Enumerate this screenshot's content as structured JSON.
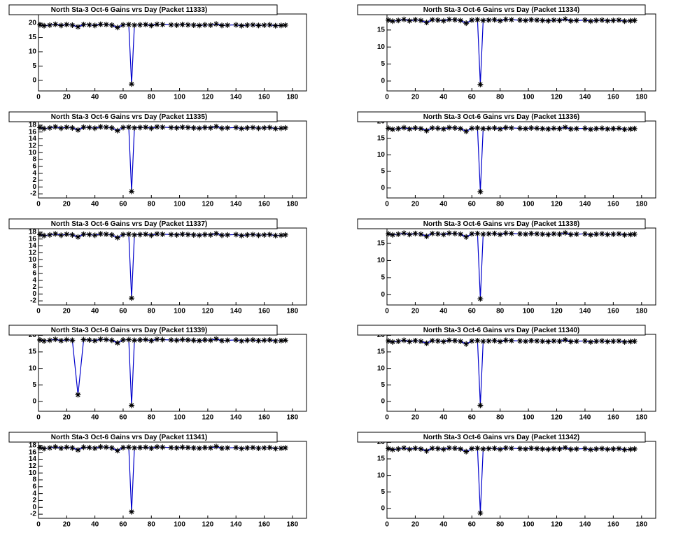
{
  "chart_data": [
    {
      "type": "line",
      "title": "North Sta-3 Oct-6 Gains vrs Day (Packet 11333)",
      "color": "#0000cc",
      "marker_color": "#000000",
      "x": [
        1,
        4,
        8,
        12,
        16,
        20,
        24,
        28,
        32,
        36,
        40,
        44,
        48,
        52,
        56,
        60,
        64,
        66,
        68,
        72,
        76,
        80,
        84,
        88,
        94,
        98,
        102,
        106,
        110,
        114,
        118,
        122,
        126,
        130,
        134,
        140,
        144,
        148,
        152,
        156,
        160,
        164,
        168,
        172,
        175
      ],
      "values": [
        19.4,
        19.1,
        19.3,
        19.6,
        19.2,
        19.5,
        19.3,
        18.7,
        19.5,
        19.4,
        19.2,
        19.6,
        19.5,
        19.3,
        18.5,
        19.4,
        19.5,
        -1.3,
        19.3,
        19.4,
        19.5,
        19.2,
        19.6,
        19.5,
        19.4,
        19.3,
        19.5,
        19.4,
        19.3,
        19.2,
        19.4,
        19.3,
        19.7,
        19.2,
        19.3,
        19.4,
        19.1,
        19.3,
        19.4,
        19.2,
        19.3,
        19.4,
        19.1,
        19.2,
        19.3
      ],
      "xlim": [
        0,
        190
      ],
      "ylim": [
        -3.7,
        23.2
      ],
      "xticks": [
        0,
        20,
        40,
        60,
        80,
        100,
        120,
        140,
        160,
        180
      ],
      "yticks": [
        0,
        5,
        10,
        15,
        20
      ]
    },
    {
      "type": "line",
      "title": "North Sta-3 Oct-6 Gains vrs Day (Packet 11334)",
      "color": "#0000cc",
      "marker_color": "#000000",
      "x": [
        1,
        4,
        8,
        12,
        16,
        20,
        24,
        28,
        32,
        36,
        40,
        44,
        48,
        52,
        56,
        60,
        64,
        66,
        68,
        72,
        76,
        80,
        84,
        88,
        94,
        98,
        102,
        106,
        110,
        114,
        118,
        122,
        126,
        130,
        134,
        140,
        144,
        148,
        152,
        156,
        160,
        164,
        168,
        172,
        175
      ],
      "values": [
        17.9,
        17.6,
        17.8,
        18.1,
        17.7,
        18.0,
        17.8,
        17.2,
        18.0,
        17.9,
        17.7,
        18.1,
        18.0,
        17.8,
        17.0,
        17.9,
        18.0,
        -1.0,
        17.8,
        17.9,
        18.0,
        17.7,
        18.1,
        18.0,
        17.9,
        17.8,
        18.0,
        17.9,
        17.8,
        17.7,
        17.9,
        17.8,
        18.2,
        17.7,
        17.8,
        17.9,
        17.6,
        17.8,
        17.9,
        17.7,
        17.8,
        17.9,
        17.6,
        17.7,
        17.8
      ],
      "xlim": [
        0,
        190
      ],
      "ylim": [
        -2.9,
        19.7
      ],
      "xticks": [
        0,
        20,
        40,
        60,
        80,
        100,
        120,
        140,
        160,
        180
      ],
      "yticks": [
        0,
        5,
        10,
        15
      ]
    },
    {
      "type": "line",
      "title": "North Sta-3 Oct-6 Gains vrs Day (Packet 11335)",
      "color": "#0000cc",
      "marker_color": "#000000",
      "x": [
        1,
        4,
        8,
        12,
        16,
        20,
        24,
        28,
        32,
        36,
        40,
        44,
        48,
        52,
        56,
        60,
        64,
        66,
        68,
        72,
        76,
        80,
        84,
        88,
        94,
        98,
        102,
        106,
        110,
        114,
        118,
        122,
        126,
        130,
        134,
        140,
        144,
        148,
        152,
        156,
        160,
        164,
        168,
        172,
        175
      ],
      "values": [
        17.3,
        17.0,
        17.2,
        17.5,
        17.1,
        17.4,
        17.2,
        16.6,
        17.4,
        17.3,
        17.1,
        17.5,
        17.4,
        17.2,
        16.4,
        17.3,
        17.4,
        -1.3,
        17.2,
        17.3,
        17.4,
        17.1,
        17.5,
        17.4,
        17.3,
        17.2,
        17.4,
        17.3,
        17.2,
        17.1,
        17.3,
        17.2,
        17.6,
        17.1,
        17.2,
        17.3,
        17.0,
        17.2,
        17.3,
        17.1,
        17.2,
        17.3,
        17.0,
        17.1,
        17.2
      ],
      "xlim": [
        0,
        190
      ],
      "ylim": [
        -3.2,
        19.2
      ],
      "xticks": [
        0,
        20,
        40,
        60,
        80,
        100,
        120,
        140,
        160,
        180
      ],
      "yticks": [
        -2,
        0,
        2,
        4,
        6,
        8,
        10,
        12,
        14,
        16,
        18
      ]
    },
    {
      "type": "line",
      "title": "North Sta-3 Oct-6 Gains vrs Day (Packet 11336)",
      "color": "#0000cc",
      "marker_color": "#000000",
      "x": [
        1,
        4,
        8,
        12,
        16,
        20,
        24,
        28,
        32,
        36,
        40,
        44,
        48,
        52,
        56,
        60,
        64,
        66,
        68,
        72,
        76,
        80,
        84,
        88,
        94,
        98,
        102,
        106,
        110,
        114,
        118,
        122,
        126,
        130,
        134,
        140,
        144,
        148,
        152,
        156,
        160,
        164,
        168,
        172,
        175
      ],
      "values": [
        18.0,
        17.7,
        17.9,
        18.2,
        17.8,
        18.1,
        17.9,
        17.3,
        18.1,
        18.0,
        17.8,
        18.2,
        18.1,
        17.9,
        17.1,
        18.0,
        18.1,
        -1.1,
        17.9,
        18.0,
        18.1,
        17.8,
        18.2,
        18.1,
        18.0,
        17.9,
        18.1,
        18.0,
        17.9,
        17.8,
        18.0,
        17.9,
        18.3,
        17.8,
        17.9,
        18.0,
        17.7,
        17.9,
        18.0,
        17.8,
        17.9,
        18.0,
        17.7,
        17.8,
        17.9
      ],
      "xlim": [
        0,
        190
      ],
      "ylim": [
        -3.0,
        20.2
      ],
      "xticks": [
        0,
        20,
        40,
        60,
        80,
        100,
        120,
        140,
        160,
        180
      ],
      "yticks": [
        0,
        5,
        10,
        15,
        20
      ]
    },
    {
      "type": "line",
      "title": "North Sta-3 Oct-6 Gains vrs Day (Packet 11337)",
      "color": "#0000cc",
      "marker_color": "#000000",
      "x": [
        1,
        4,
        8,
        12,
        16,
        20,
        24,
        28,
        32,
        36,
        40,
        44,
        48,
        52,
        56,
        60,
        64,
        66,
        68,
        72,
        76,
        80,
        84,
        88,
        94,
        98,
        102,
        106,
        110,
        114,
        118,
        122,
        126,
        130,
        134,
        140,
        144,
        148,
        152,
        156,
        160,
        164,
        168,
        172,
        175
      ],
      "values": [
        17.3,
        17.0,
        17.2,
        17.5,
        17.1,
        17.4,
        17.2,
        16.6,
        17.4,
        17.3,
        17.1,
        17.5,
        17.4,
        17.2,
        16.4,
        17.3,
        17.4,
        -1.2,
        17.2,
        17.3,
        17.4,
        17.1,
        17.5,
        17.4,
        17.3,
        17.2,
        17.4,
        17.3,
        17.2,
        17.1,
        17.3,
        17.2,
        17.6,
        17.1,
        17.2,
        17.3,
        17.0,
        17.2,
        17.3,
        17.1,
        17.2,
        17.3,
        17.0,
        17.1,
        17.2
      ],
      "xlim": [
        0,
        190
      ],
      "ylim": [
        -3.2,
        19.2
      ],
      "xticks": [
        0,
        20,
        40,
        60,
        80,
        100,
        120,
        140,
        160,
        180
      ],
      "yticks": [
        -2,
        0,
        2,
        4,
        6,
        8,
        10,
        12,
        14,
        16,
        18
      ]
    },
    {
      "type": "line",
      "title": "North Sta-3 Oct-6 Gains vrs Day (Packet 11338)",
      "color": "#0000cc",
      "marker_color": "#000000",
      "x": [
        1,
        4,
        8,
        12,
        16,
        20,
        24,
        28,
        32,
        36,
        40,
        44,
        48,
        52,
        56,
        60,
        64,
        66,
        68,
        72,
        76,
        80,
        84,
        88,
        94,
        98,
        102,
        106,
        110,
        114,
        118,
        122,
        126,
        130,
        134,
        140,
        144,
        148,
        152,
        156,
        160,
        164,
        168,
        172,
        175
      ],
      "values": [
        17.8,
        17.5,
        17.7,
        18.0,
        17.6,
        17.9,
        17.7,
        17.1,
        17.9,
        17.8,
        17.6,
        18.0,
        17.9,
        17.7,
        16.9,
        17.8,
        17.9,
        -1.2,
        17.7,
        17.8,
        17.9,
        17.6,
        18.0,
        17.9,
        17.8,
        17.7,
        17.9,
        17.8,
        17.7,
        17.6,
        17.8,
        17.7,
        18.1,
        17.6,
        17.7,
        17.8,
        17.5,
        17.7,
        17.8,
        17.6,
        17.7,
        17.8,
        17.5,
        17.6,
        17.7
      ],
      "xlim": [
        0,
        190
      ],
      "ylim": [
        -3.0,
        19.5
      ],
      "xticks": [
        0,
        20,
        40,
        60,
        80,
        100,
        120,
        140,
        160,
        180
      ],
      "yticks": [
        0,
        5,
        10,
        15
      ]
    },
    {
      "type": "line",
      "title": "North Sta-3 Oct-6 Gains vrs Day (Packet 11339)",
      "color": "#0000cc",
      "marker_color": "#000000",
      "x": [
        1,
        4,
        8,
        12,
        16,
        20,
        24,
        28,
        32,
        36,
        40,
        44,
        48,
        52,
        56,
        60,
        64,
        66,
        68,
        72,
        76,
        80,
        84,
        88,
        94,
        98,
        102,
        106,
        110,
        114,
        118,
        122,
        126,
        130,
        134,
        140,
        144,
        148,
        152,
        156,
        160,
        164,
        168,
        172,
        175
      ],
      "values": [
        18.6,
        18.3,
        18.5,
        18.8,
        18.4,
        18.7,
        18.5,
        2.0,
        18.7,
        18.6,
        18.4,
        18.8,
        18.7,
        18.5,
        17.7,
        18.6,
        18.7,
        -1.2,
        18.5,
        18.6,
        18.7,
        18.4,
        18.8,
        18.7,
        18.6,
        18.5,
        18.7,
        18.6,
        18.5,
        18.4,
        18.6,
        18.5,
        18.9,
        18.4,
        18.5,
        18.6,
        18.3,
        18.5,
        18.6,
        18.4,
        18.5,
        18.6,
        18.3,
        18.4,
        18.5
      ],
      "xlim": [
        0,
        190
      ],
      "ylim": [
        -3.0,
        20.3
      ],
      "xticks": [
        0,
        20,
        40,
        60,
        80,
        100,
        120,
        140,
        160,
        180
      ],
      "yticks": [
        0,
        5,
        10,
        15,
        20
      ]
    },
    {
      "type": "line",
      "title": "North Sta-3 Oct-6 Gains vrs Day (Packet 11340)",
      "color": "#0000cc",
      "marker_color": "#000000",
      "x": [
        1,
        4,
        8,
        12,
        16,
        20,
        24,
        28,
        32,
        36,
        40,
        44,
        48,
        52,
        56,
        60,
        64,
        66,
        68,
        72,
        76,
        80,
        84,
        88,
        94,
        98,
        102,
        106,
        110,
        114,
        118,
        122,
        126,
        130,
        134,
        140,
        144,
        148,
        152,
        156,
        160,
        164,
        168,
        172,
        175
      ],
      "values": [
        18.3,
        18.0,
        18.2,
        18.5,
        18.1,
        18.4,
        18.2,
        17.6,
        18.4,
        18.3,
        18.1,
        18.5,
        18.4,
        18.2,
        17.4,
        18.3,
        18.4,
        -1.2,
        18.2,
        18.3,
        18.4,
        18.1,
        18.5,
        18.4,
        18.3,
        18.2,
        18.4,
        18.3,
        18.2,
        18.1,
        18.3,
        18.2,
        18.6,
        18.1,
        18.2,
        18.3,
        18.0,
        18.2,
        18.3,
        18.1,
        18.2,
        18.3,
        18.0,
        18.1,
        18.2
      ],
      "xlim": [
        0,
        190
      ],
      "ylim": [
        -3.0,
        20.3
      ],
      "xticks": [
        0,
        20,
        40,
        60,
        80,
        100,
        120,
        140,
        160,
        180
      ],
      "yticks": [
        0,
        5,
        10,
        15,
        20
      ]
    },
    {
      "type": "line",
      "title": "North Sta-3 Oct-6 Gains vrs Day (Packet 11341)",
      "color": "#0000cc",
      "marker_color": "#000000",
      "x": [
        1,
        4,
        8,
        12,
        16,
        20,
        24,
        28,
        32,
        36,
        40,
        44,
        48,
        52,
        56,
        60,
        64,
        66,
        68,
        72,
        76,
        80,
        84,
        88,
        94,
        98,
        102,
        106,
        110,
        114,
        118,
        122,
        126,
        130,
        134,
        140,
        144,
        148,
        152,
        156,
        160,
        164,
        168,
        172,
        175
      ],
      "values": [
        17.4,
        17.1,
        17.3,
        17.6,
        17.2,
        17.5,
        17.3,
        16.7,
        17.5,
        17.4,
        17.2,
        17.6,
        17.5,
        17.3,
        16.5,
        17.4,
        17.5,
        -1.3,
        17.3,
        17.4,
        17.5,
        17.2,
        17.6,
        17.5,
        17.4,
        17.3,
        17.5,
        17.4,
        17.3,
        17.2,
        17.4,
        17.3,
        17.7,
        17.2,
        17.3,
        17.4,
        17.1,
        17.3,
        17.4,
        17.2,
        17.3,
        17.4,
        17.1,
        17.2,
        17.3
      ],
      "xlim": [
        0,
        190
      ],
      "ylim": [
        -3.2,
        19.2
      ],
      "xticks": [
        0,
        20,
        40,
        60,
        80,
        100,
        120,
        140,
        160,
        180
      ],
      "yticks": [
        -2,
        0,
        2,
        4,
        6,
        8,
        10,
        12,
        14,
        16,
        18
      ]
    },
    {
      "type": "line",
      "title": "North Sta-3 Oct-6 Gains vrs Day (Packet 11342)",
      "color": "#0000cc",
      "marker_color": "#000000",
      "x": [
        1,
        4,
        8,
        12,
        16,
        20,
        24,
        28,
        32,
        36,
        40,
        44,
        48,
        52,
        56,
        60,
        64,
        66,
        68,
        72,
        76,
        80,
        84,
        88,
        94,
        98,
        102,
        106,
        110,
        114,
        118,
        122,
        126,
        130,
        134,
        140,
        144,
        148,
        152,
        156,
        160,
        164,
        168,
        172,
        175
      ],
      "values": [
        18.1,
        17.8,
        18.0,
        18.3,
        17.9,
        18.2,
        18.0,
        17.4,
        18.2,
        18.1,
        17.9,
        18.3,
        18.2,
        18.0,
        17.2,
        18.1,
        18.2,
        -1.4,
        18.0,
        18.1,
        18.2,
        17.9,
        18.3,
        18.2,
        18.1,
        18.0,
        18.2,
        18.1,
        18.0,
        17.9,
        18.1,
        18.0,
        18.4,
        17.9,
        18.0,
        18.1,
        17.8,
        18.0,
        18.1,
        17.9,
        18.0,
        18.1,
        17.8,
        17.9,
        18.0
      ],
      "xlim": [
        0,
        190
      ],
      "ylim": [
        -3.0,
        20.3
      ],
      "xticks": [
        0,
        20,
        40,
        60,
        80,
        100,
        120,
        140,
        160,
        180
      ],
      "yticks": [
        0,
        5,
        10,
        15,
        20
      ]
    }
  ]
}
